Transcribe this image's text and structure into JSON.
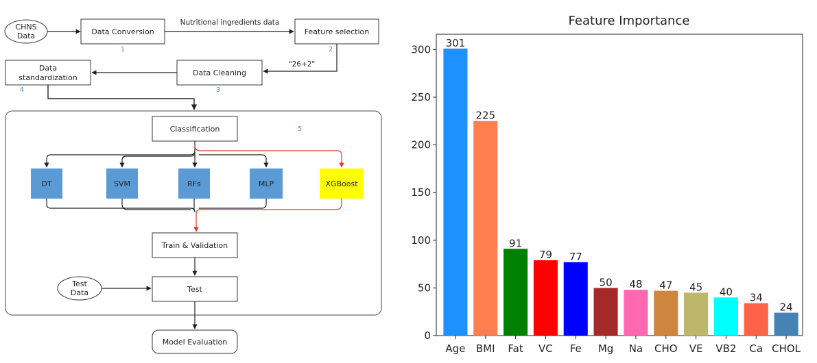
{
  "flowchart": {
    "chns_data": [
      "CHNS",
      "Data"
    ],
    "data_conversion": "Data Conversion",
    "num_1": "1",
    "edge_nutritional": "Nutritional ingredients data",
    "feature_selection": "Feature selection",
    "num_2": "2",
    "edge_26_2": "\"26+2\"",
    "data_cleaning": "Data Cleaning",
    "num_3": "3",
    "data_standardization": [
      "Data",
      "standardization"
    ],
    "num_4": "4",
    "classification": "Classification",
    "num_5": "5",
    "models": [
      "DT",
      "SVM",
      "RFs",
      "MLP",
      "XGBoost"
    ],
    "train_validation": "Train & Validation",
    "test_data": [
      "Test",
      "Data"
    ],
    "test": "Test",
    "model_evaluation": "Model Evaluation",
    "colors": {
      "model_box": "#5b9bd5",
      "xgboost_box": "#ffff00",
      "red_path": "#e8332a"
    }
  },
  "chart_data": {
    "type": "bar",
    "title": "Feature Importance",
    "categories": [
      "Age",
      "BMI",
      "Fat",
      "VC",
      "Fe",
      "Mg",
      "Na",
      "CHO",
      "VE",
      "VB2",
      "Ca",
      "CHOL"
    ],
    "values": [
      301,
      225,
      91,
      79,
      77,
      50,
      48,
      47,
      45,
      40,
      34,
      24
    ],
    "colors": [
      "#1e90ff",
      "#ff7f50",
      "#008000",
      "#ff0000",
      "#0000ff",
      "#a52a2a",
      "#ff69b4",
      "#cd853f",
      "#bdb76b",
      "#00ffff",
      "#ff6347",
      "#4682b4"
    ],
    "yticks": [
      0,
      50,
      100,
      150,
      200,
      250,
      300
    ],
    "ylim": [
      0,
      316
    ],
    "xlabel": "",
    "ylabel": ""
  }
}
